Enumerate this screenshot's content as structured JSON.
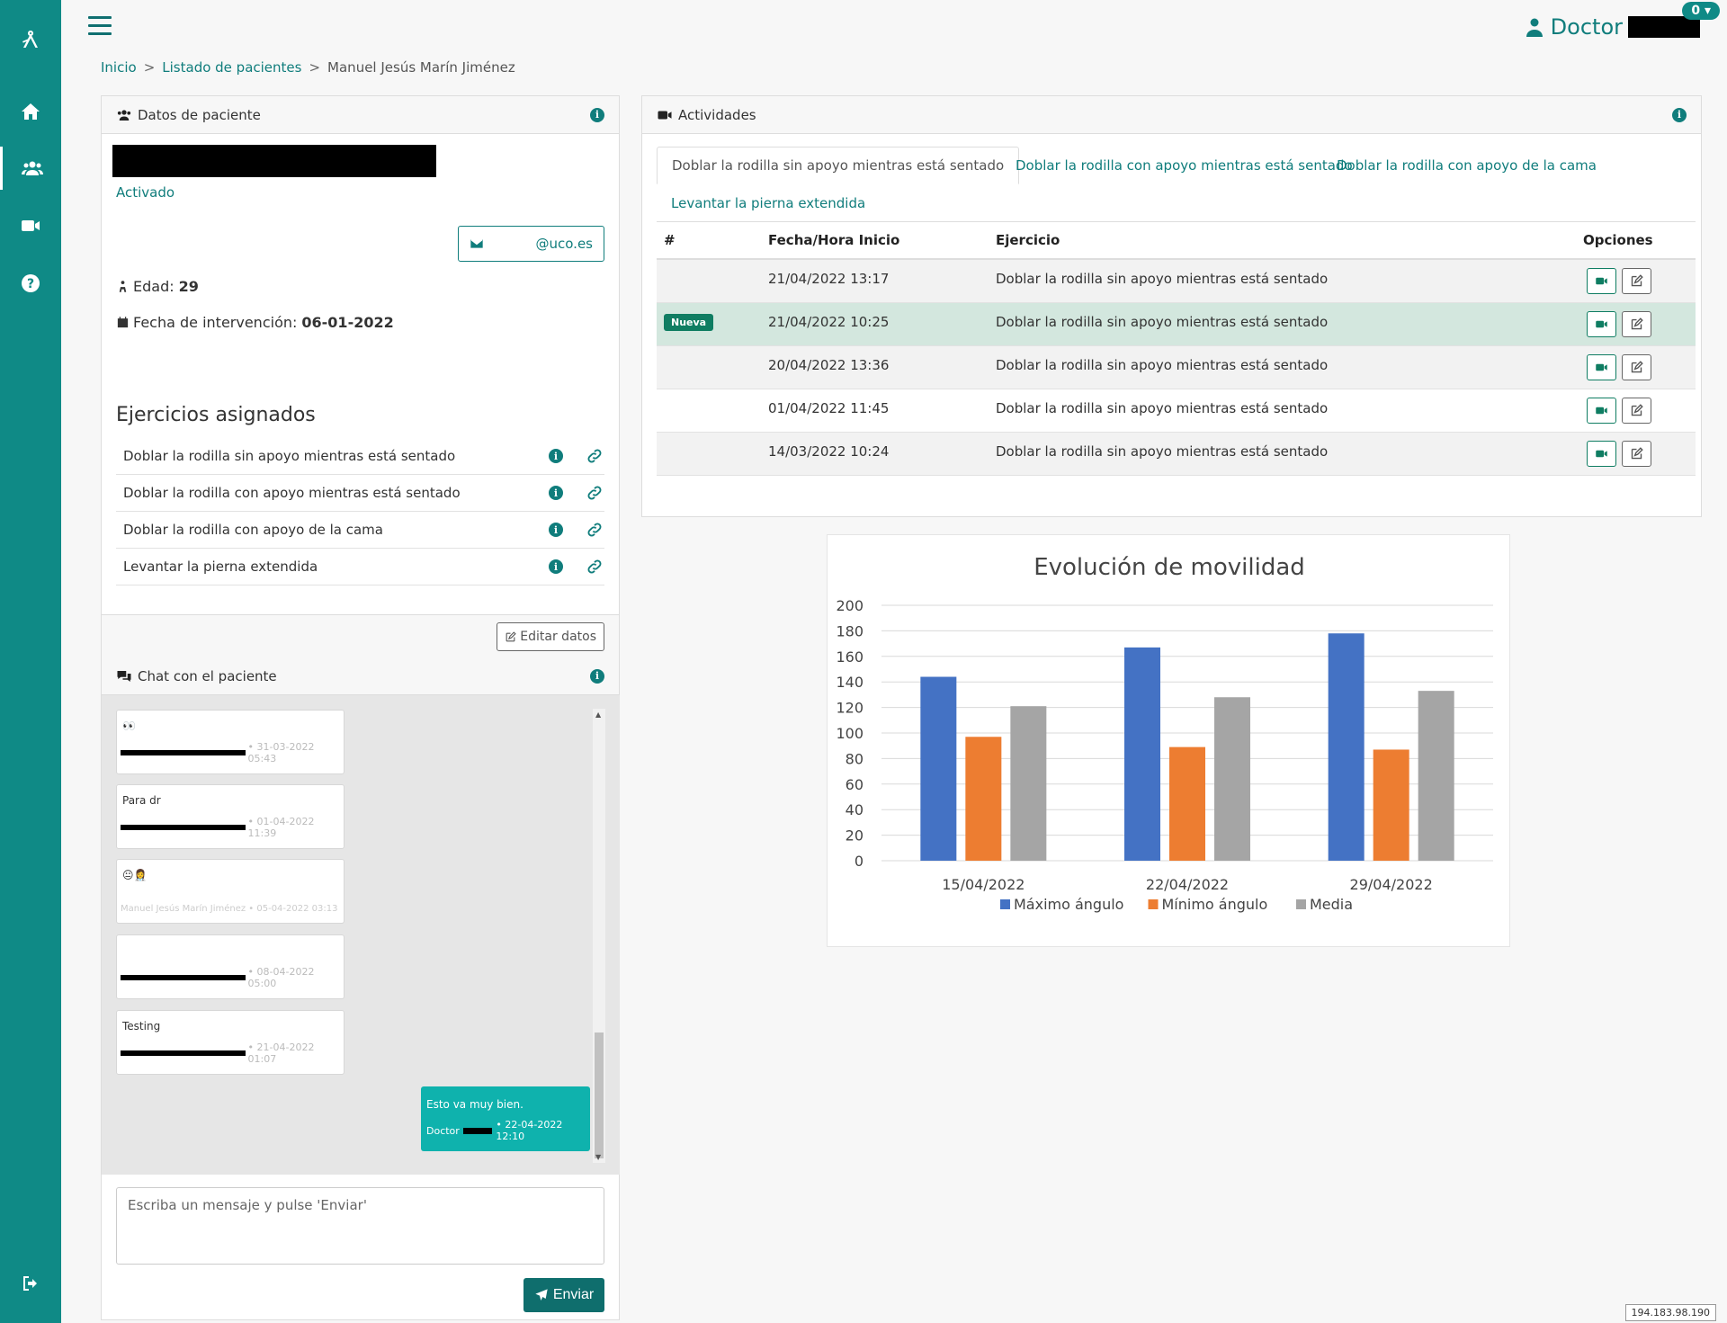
{
  "sidebar": {
    "icons": [
      "logo-icon",
      "home-icon",
      "users-icon",
      "video-icon",
      "help-icon",
      "logout-icon"
    ]
  },
  "topbar": {
    "user_label": "Doctor",
    "notification_count": "0"
  },
  "breadcrumb": {
    "items": [
      "Inicio",
      "Listado de pacientes",
      "Manuel Jesús Marín Jiménez"
    ]
  },
  "patient": {
    "header": "Datos de paciente",
    "status": "Activado",
    "email": "@uco.es",
    "age_label": "Edad:",
    "age": "29",
    "intervention_label": "Fecha de intervención:",
    "intervention_date": "06-01-2022",
    "exercises_title": "Ejercicios asignados",
    "exercises": [
      "Doblar la rodilla sin apoyo mientras está sentado",
      "Doblar la rodilla con apoyo mientras está sentado",
      "Doblar la rodilla con apoyo de la cama",
      "Levantar la pierna extendida"
    ],
    "edit_label": "Editar datos"
  },
  "chat": {
    "header": "Chat con el paciente",
    "messages": [
      {
        "text": "👀",
        "meta": "• 31-03-2022 05:43"
      },
      {
        "text": "Para dr",
        "meta": "• 01-04-2022 11:39"
      },
      {
        "text": "😐👩‍⚕️",
        "meta": "Manuel Jesús Marín Jiménez • 05-04-2022 03:13"
      },
      {
        "text": "",
        "meta": "• 08-04-2022 05:00"
      },
      {
        "text": "Testing",
        "meta": "• 21-04-2022 01:07"
      }
    ],
    "own_message": {
      "text": "Esto va muy bien.",
      "author": "Doctor",
      "meta": "• 22-04-2022 12:10"
    },
    "input_placeholder": "Escriba un mensaje y pulse 'Enviar'",
    "send_label": "Enviar"
  },
  "activities": {
    "header": "Actividades",
    "tabs": [
      "Doblar la rodilla sin apoyo mientras está sentado",
      "Doblar la rodilla con apoyo mientras está sentado",
      "Doblar la rodilla con apoyo de la cama",
      "Levantar la pierna extendida"
    ],
    "columns": [
      "#",
      "Fecha/Hora Inicio",
      "Ejercicio",
      "Opciones"
    ],
    "new_badge": "Nueva",
    "rows": [
      {
        "date": "21/04/2022 13:17",
        "exercise": "Doblar la rodilla sin apoyo mientras está sentado",
        "new": false
      },
      {
        "date": "21/04/2022 10:25",
        "exercise": "Doblar la rodilla sin apoyo mientras está sentado",
        "new": true
      },
      {
        "date": "20/04/2022 13:36",
        "exercise": "Doblar la rodilla sin apoyo mientras está sentado",
        "new": false
      },
      {
        "date": "01/04/2022 11:45",
        "exercise": "Doblar la rodilla sin apoyo mientras está sentado",
        "new": false
      },
      {
        "date": "14/03/2022 10:24",
        "exercise": "Doblar la rodilla sin apoyo mientras está sentado",
        "new": false
      }
    ]
  },
  "chart_data": {
    "type": "bar",
    "title": "Evolución de movilidad",
    "categories": [
      "15/04/2022",
      "22/04/2022",
      "29/04/2022"
    ],
    "series": [
      {
        "name": "Máximo ángulo",
        "values": [
          144,
          167,
          178
        ],
        "color": "#4472c4"
      },
      {
        "name": "Mínimo ángulo",
        "values": [
          97,
          89,
          87
        ],
        "color": "#ed7d31"
      },
      {
        "name": "Media",
        "values": [
          121,
          128,
          133
        ],
        "color": "#a5a5a5"
      }
    ],
    "ylim": [
      0,
      200
    ],
    "yticks": [
      0,
      20,
      40,
      60,
      80,
      100,
      120,
      140,
      160,
      180,
      200
    ],
    "grid": true,
    "legend": "bottom"
  },
  "footer": {
    "ip": "194.183.98.190"
  }
}
